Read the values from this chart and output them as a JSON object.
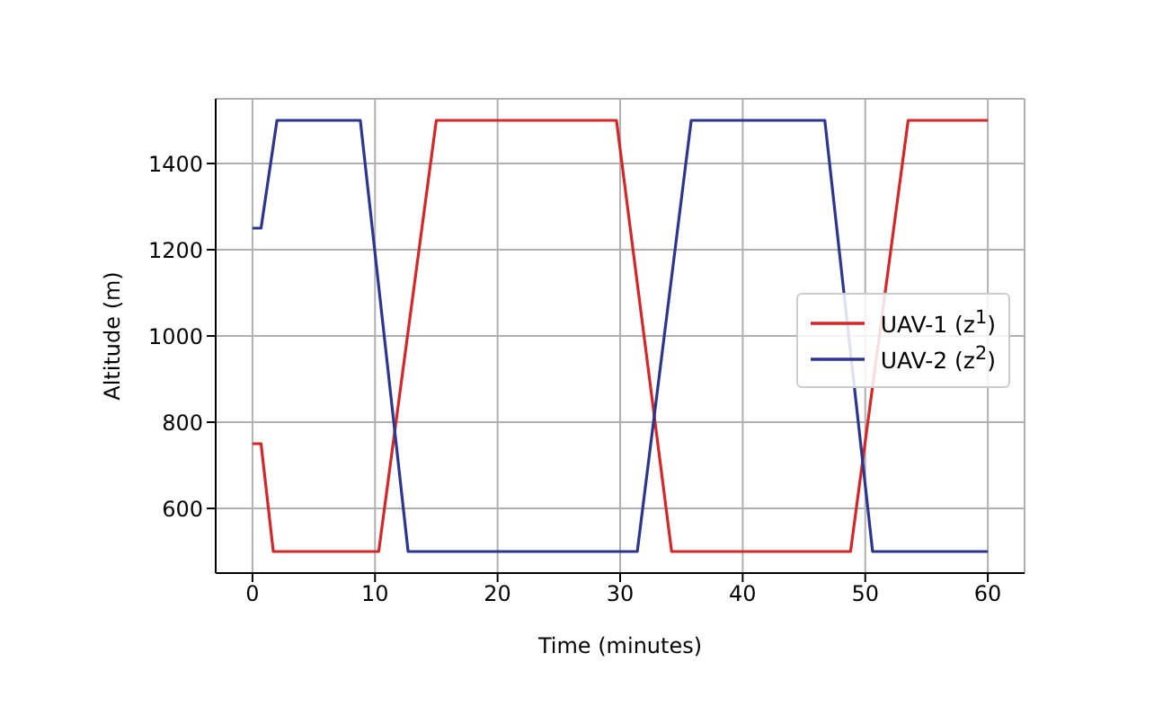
{
  "chart_data": {
    "type": "line",
    "xlabel": "Time (minutes)",
    "ylabel": "Altitude (m)",
    "xlim": [
      -3,
      63
    ],
    "ylim": [
      450,
      1550
    ],
    "xticks": [
      0,
      10,
      20,
      30,
      40,
      50,
      60
    ],
    "yticks": [
      600,
      800,
      1000,
      1200,
      1400
    ],
    "grid": true,
    "legend": "right",
    "marker": "none",
    "line_style": "solid",
    "series": [
      {
        "name": "UAV-1 (z$^{1}$)",
        "color": "#d62728",
        "x": [
          0,
          0.7,
          1.7,
          10.3,
          15,
          29.7,
          34.2,
          48.8,
          53.5,
          60
        ],
        "values": [
          750,
          750,
          500,
          500,
          1500,
          1500,
          500,
          500,
          1500,
          1500
        ]
      },
      {
        "name": "UAV-2 (z$^{2}$)",
        "color": "#2c3590",
        "x": [
          0,
          0.7,
          2,
          8.8,
          12.7,
          31.4,
          35.8,
          46.7,
          50.6,
          60
        ],
        "values": [
          1250,
          1250,
          1500,
          1500,
          500,
          500,
          1500,
          1500,
          500,
          500
        ]
      }
    ]
  }
}
